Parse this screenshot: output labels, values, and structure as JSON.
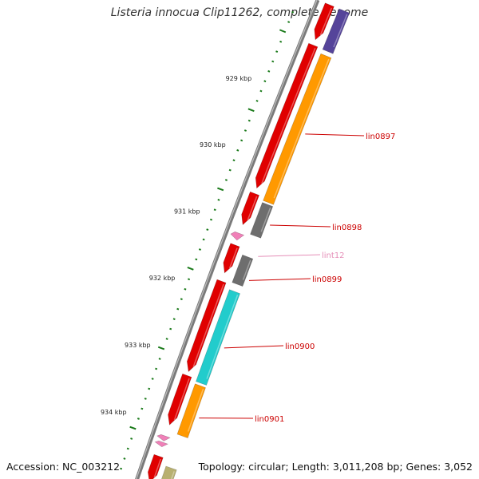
{
  "title": "Listeria innocua Clip11262, complete genome",
  "footer": {
    "accession": "Accession: NC_003212",
    "summary": "Topology: circular; Length: 3,011,208 bp; Genes: 3,052"
  },
  "colors": {
    "backbone": "#7a7a7a",
    "tick": "#1a7a1a",
    "cds_forward": "#e00000",
    "label_default": "#cc0000",
    "label_pink": "#e58fb8",
    "orange": "#ff9900",
    "gray": "#6e6e6e",
    "cyan": "#22cccc",
    "purple": "#55449a",
    "khaki": "#b8b070",
    "pink": "#f080b8"
  },
  "ticks": [
    {
      "label": "929 kbp"
    },
    {
      "label": "930 kbp"
    },
    {
      "label": "931 kbp"
    },
    {
      "label": "932 kbp"
    },
    {
      "label": "933 kbp"
    },
    {
      "label": "934 kbp"
    }
  ],
  "features": [
    {
      "track": 0,
      "color": "cds_forward",
      "from": 0.0,
      "to": 0.073,
      "strand": "+"
    },
    {
      "track": 0,
      "color": "cds_forward",
      "from": 0.084,
      "to": 0.382,
      "strand": "+"
    },
    {
      "track": 0,
      "color": "cds_forward",
      "from": 0.393,
      "to": 0.458,
      "strand": "+"
    },
    {
      "track": 0,
      "color": "cds_forward",
      "from": 0.5,
      "to": 0.558,
      "strand": "+"
    },
    {
      "track": 0,
      "color": "cds_forward",
      "from": 0.575,
      "to": 0.762,
      "strand": "+"
    },
    {
      "track": 0,
      "color": "cds_forward",
      "from": 0.77,
      "to": 0.872,
      "strand": "+"
    },
    {
      "track": 0,
      "color": "cds_forward",
      "from": 0.936,
      "to": 0.99,
      "strand": "+"
    },
    {
      "track": 1,
      "color": "purple",
      "from": 0.0,
      "to": 0.085,
      "strand": "none"
    },
    {
      "track": 1,
      "color": "orange",
      "from": 0.094,
      "to": 0.4,
      "strand": "none"
    },
    {
      "track": 1,
      "color": "gray",
      "from": 0.404,
      "to": 0.47,
      "strand": "none"
    },
    {
      "track": 1,
      "color": "gray",
      "from": 0.513,
      "to": 0.57,
      "strand": "none"
    },
    {
      "track": 1,
      "color": "cyan",
      "from": 0.585,
      "to": 0.775,
      "strand": "none"
    },
    {
      "track": 1,
      "color": "orange",
      "from": 0.78,
      "to": 0.884,
      "strand": "none"
    },
    {
      "track": 1,
      "color": "khaki",
      "from": 0.95,
      "to": 1.0,
      "strand": "none"
    },
    {
      "track": 0,
      "color": "pink",
      "from": 0.476,
      "to": 0.49,
      "strand": "-"
    },
    {
      "track": 0,
      "color": "pink",
      "from": 0.895,
      "to": 0.905,
      "strand": "-"
    },
    {
      "track": 0,
      "color": "pink",
      "from": 0.908,
      "to": 0.917,
      "strand": "-"
    }
  ],
  "labels": [
    {
      "text": "lin0897",
      "color": "label_default"
    },
    {
      "text": "lin0898",
      "color": "label_default"
    },
    {
      "text": "lint12",
      "color": "label_pink"
    },
    {
      "text": "lin0899",
      "color": "label_default"
    },
    {
      "text": "lin0900",
      "color": "label_default"
    },
    {
      "text": "lin0901",
      "color": "label_default"
    }
  ]
}
